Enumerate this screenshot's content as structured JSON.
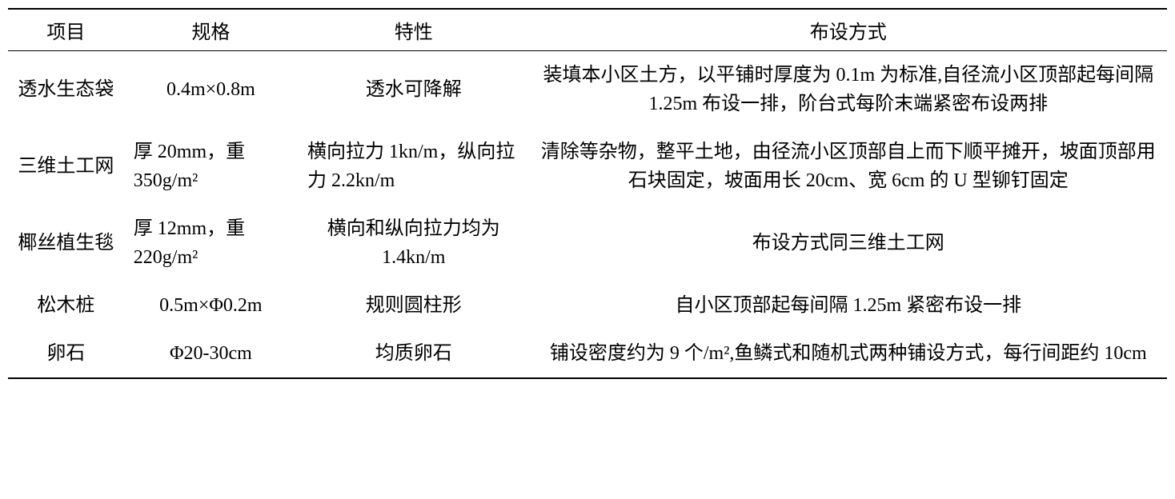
{
  "table": {
    "headers": {
      "item": "项目",
      "spec": "规格",
      "feature": "特性",
      "layout": "布设方式"
    },
    "rows": [
      {
        "item": "透水生态袋",
        "spec": "0.4m×0.8m",
        "feature": "透水可降解",
        "layout": "装填本小区土方，以平铺时厚度为 0.1m 为标准,自径流小区顶部起每间隔 1.25m 布设一排，阶台式每阶末端紧密布设两排"
      },
      {
        "item": "三维土工网",
        "spec": "厚 20mm，重350g/m²",
        "feature": "横向拉力 1kn/m，纵向拉力 2.2kn/m",
        "layout": "清除等杂物，整平土地，由径流小区顶部自上而下顺平摊开，坡面顶部用石块固定，坡面用长 20cm、宽 6cm 的 U 型铆钉固定"
      },
      {
        "item": "椰丝植生毯",
        "spec": "厚 12mm，重220g/m²",
        "feature": "横向和纵向拉力均为 1.4kn/m",
        "layout": "布设方式同三维土工网"
      },
      {
        "item": "松木桩",
        "spec": "0.5m×Φ0.2m",
        "feature": "规则圆柱形",
        "layout": "自小区顶部起每间隔 1.25m 紧密布设一排"
      },
      {
        "item": "卵石",
        "spec": "Φ20-30cm",
        "feature": "均质卵石",
        "layout": "铺设密度约为 9 个/m²,鱼鳞式和随机式两种铺设方式，每行间距约 10cm"
      }
    ],
    "styling": {
      "background_color": "#ffffff",
      "text_color": "#000000",
      "border_color": "#000000",
      "header_border_top_width": 2,
      "header_border_bottom_width": 1.5,
      "footer_border_width": 2,
      "font_size": 24,
      "font_family": "SimSun",
      "column_widths": {
        "item": "10%",
        "spec": "15%",
        "feature": "20%",
        "layout": "55%"
      },
      "row_alignment": {
        "default": "center",
        "spec_left_rows": [
          1,
          2
        ],
        "feature_left_rows": [
          1
        ]
      }
    }
  }
}
